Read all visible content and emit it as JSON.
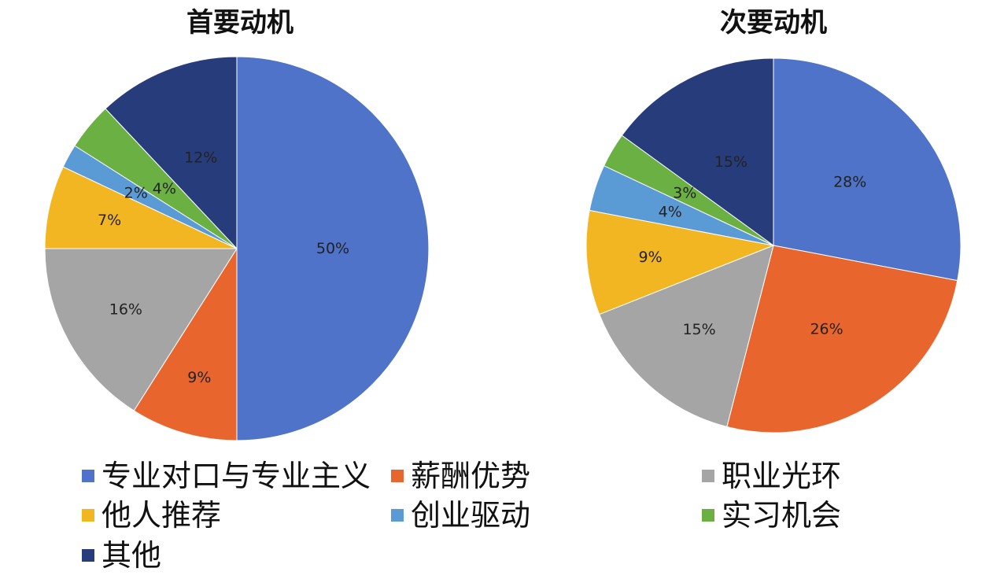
{
  "chart_data": [
    {
      "type": "pie",
      "title": "首要动机",
      "categories": [
        "专业对口与专业主义",
        "薪酬优势",
        "职业光环",
        "他人推荐",
        "创业驱动",
        "实习机会",
        "其他"
      ],
      "values": [
        50,
        9,
        16,
        7,
        2,
        4,
        12
      ],
      "labels": [
        "50%",
        "9%",
        "16%",
        "7%",
        "2%",
        "4%",
        "12%"
      ],
      "start": "12 o'clock",
      "direction": "clockwise"
    },
    {
      "type": "pie",
      "title": "次要动机",
      "categories": [
        "专业对口与专业主义",
        "薪酬优势",
        "职业光环",
        "他人推荐",
        "创业驱动",
        "实习机会",
        "其他"
      ],
      "values": [
        28,
        26,
        15,
        9,
        4,
        3,
        15
      ],
      "labels": [
        "28%",
        "26%",
        "15%",
        "9%",
        "4%",
        "3%",
        "15%"
      ],
      "start": "12 o'clock",
      "direction": "clockwise"
    }
  ],
  "legend": {
    "placement": "bottom",
    "items": [
      {
        "label": "专业对口与专业主义",
        "color": "#4F73C8"
      },
      {
        "label": "薪酬优势",
        "color": "#E8662E"
      },
      {
        "label": "职业光环",
        "color": "#A5A5A5"
      },
      {
        "label": "他人推荐",
        "color": "#F2B622"
      },
      {
        "label": "创业驱动",
        "color": "#5B9BD5"
      },
      {
        "label": "实习机会",
        "color": "#6AB043"
      },
      {
        "label": "其他",
        "color": "#273C7A"
      }
    ]
  }
}
